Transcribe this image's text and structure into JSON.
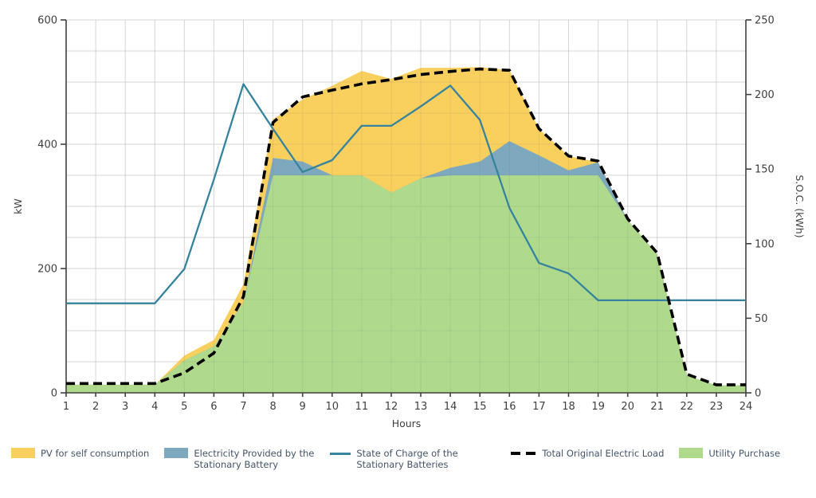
{
  "axes": {
    "y_left_label": "kW",
    "y_right_label": "S.O.C. (kWh)",
    "x_label": "Hours",
    "y_left_max": 600,
    "y_right_max": 250,
    "grid_step": 50,
    "y_left_ticks": [
      0,
      200,
      400,
      600
    ],
    "y_right_ticks": [
      0,
      50,
      100,
      150,
      200,
      250
    ],
    "x_ticks": [
      1,
      2,
      3,
      4,
      5,
      6,
      7,
      8,
      9,
      10,
      11,
      12,
      13,
      14,
      15,
      16,
      17,
      18,
      19,
      20,
      21,
      22,
      23,
      24
    ]
  },
  "colors": {
    "pv": "#F9CF5D",
    "battery": "#7EA8BD",
    "utility": "#AFD98B",
    "soc": "#35839F",
    "load": "#000000",
    "grid": "#E7E7E7",
    "grid_overlay": "rgba(120,120,120,0.15)",
    "axis": "#404040",
    "tick_text": "#3F3F3F",
    "legend_text": "#44546A"
  },
  "legend": {
    "items": [
      {
        "label": "PV for self consumption",
        "swatch": "area",
        "color": "pv"
      },
      {
        "label": "Electricity Provided by the Stationary Battery",
        "swatch": "area",
        "color": "battery"
      },
      {
        "label": "State of Charge of the Stationary Batteries",
        "swatch": "line",
        "color": "soc"
      },
      {
        "label": "Total Original Electric Load",
        "swatch": "dash",
        "color": "load"
      },
      {
        "label": "Utility Purchase",
        "swatch": "area",
        "color": "utility"
      }
    ]
  },
  "chart_data": {
    "type": "area",
    "x_label": "Hours",
    "x": [
      1,
      2,
      3,
      4,
      5,
      6,
      7,
      8,
      9,
      10,
      11,
      12,
      13,
      14,
      15,
      16,
      17,
      18,
      19,
      20,
      21,
      22,
      23,
      24
    ],
    "left_axis_range": [
      0,
      600
    ],
    "right_axis_range": [
      0,
      250
    ],
    "grid": true,
    "legend_position": "bottom",
    "series": [
      {
        "id": "utility",
        "name": "Utility Purchase",
        "type": "area",
        "axis": "left",
        "stacked": true,
        "values": [
          13,
          13,
          13,
          13,
          52,
          75,
          145,
          350,
          350,
          350,
          350,
          322,
          345,
          350,
          350,
          350,
          350,
          350,
          350,
          278,
          223,
          28,
          12,
          12
        ]
      },
      {
        "id": "battery",
        "name": "Electricity Provided by the Stationary Battery",
        "type": "area",
        "axis": "left",
        "stacked": true,
        "values": [
          0,
          0,
          0,
          0,
          0,
          0,
          0,
          28,
          22,
          0,
          0,
          0,
          0,
          12,
          22,
          55,
          32,
          8,
          21,
          0,
          0,
          0,
          0,
          0
        ]
      },
      {
        "id": "pv",
        "name": "PV for self consumption",
        "type": "area",
        "axis": "left",
        "stacked": true,
        "values": [
          0,
          0,
          0,
          0,
          8,
          10,
          30,
          62,
          100,
          144,
          168,
          183,
          178,
          161,
          152,
          114,
          43,
          23,
          0,
          0,
          0,
          0,
          0,
          0
        ]
      },
      {
        "id": "load",
        "name": "Total Original Electric Load",
        "type": "line",
        "style": "dashed",
        "axis": "left",
        "values": [
          15,
          15,
          15,
          15,
          32,
          64,
          155,
          435,
          476,
          487,
          497,
          504,
          512,
          517,
          521,
          519,
          425,
          381,
          373,
          280,
          225,
          30,
          13,
          13
        ]
      },
      {
        "id": "soc",
        "name": "State of Charge of the Stationary Batteries",
        "type": "line",
        "style": "solid",
        "axis": "right",
        "values": [
          60,
          60,
          60,
          60,
          83,
          143,
          207,
          177,
          148,
          156,
          179,
          179,
          192,
          206,
          183,
          124,
          87,
          80,
          62,
          62,
          62,
          62,
          62,
          62
        ]
      }
    ]
  }
}
